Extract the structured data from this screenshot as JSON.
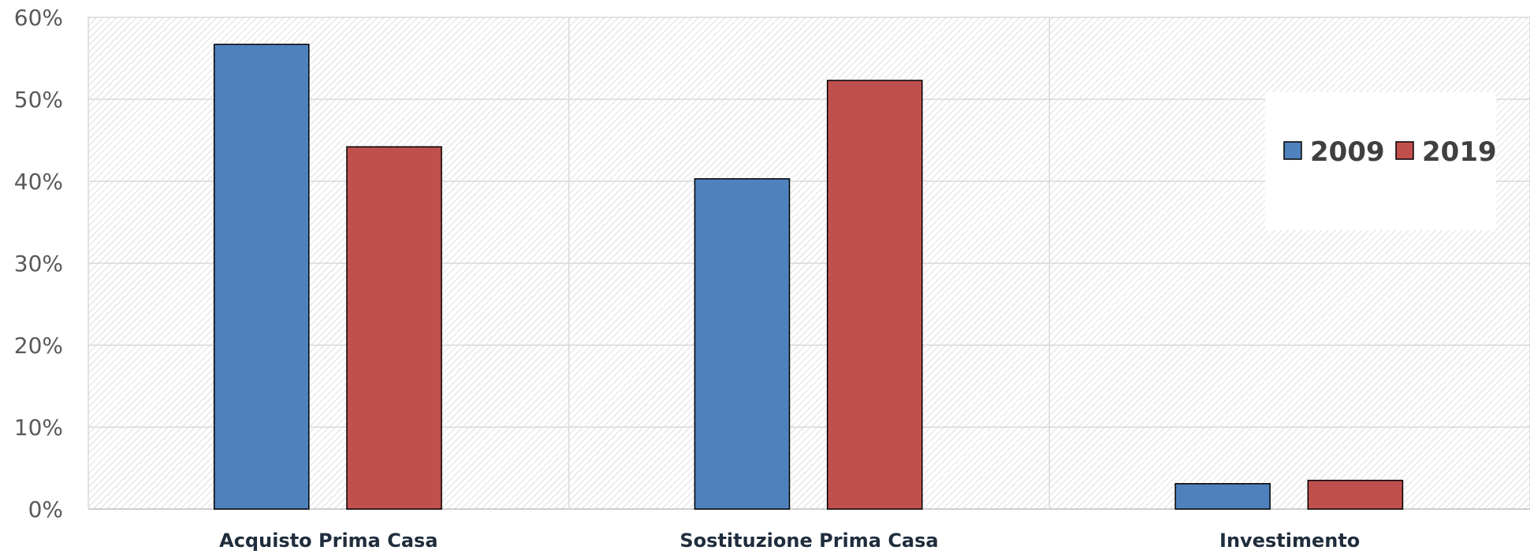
{
  "chart_data": {
    "type": "bar",
    "categories": [
      "Acquisto Prima Casa",
      "Sostituzione Prima Casa",
      "Investimento"
    ],
    "series": [
      {
        "name": "2009",
        "values": [
          56.7,
          40.3,
          3.1
        ],
        "color": "#4f81bd"
      },
      {
        "name": "2019",
        "values": [
          44.2,
          52.3,
          3.5
        ],
        "color": "#c0504d"
      }
    ],
    "y_ticks": [
      "0%",
      "10%",
      "20%",
      "30%",
      "40%",
      "50%",
      "60%"
    ],
    "ylim": [
      0,
      60
    ],
    "title": "",
    "xlabel": "",
    "ylabel": "",
    "grid": true,
    "legend_position": "top-right",
    "bar_outline_color": "#000000",
    "background_hatch_color": "#d9d9d9"
  }
}
